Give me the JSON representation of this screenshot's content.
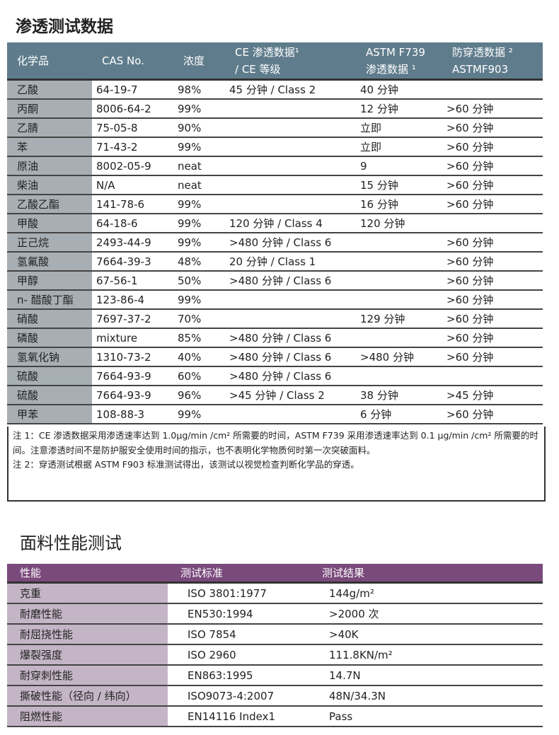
{
  "permeation": {
    "title": "渗透测试数据",
    "headers": [
      "化学品",
      "CAS No.",
      "浓度",
      "CE 渗透数据¹ / CE 等级",
      "ASTM F739 渗透数据 ¹",
      "防穿透数据 ² ASTMF903"
    ],
    "header_lines": [
      [
        "化学品"
      ],
      [
        "CAS No."
      ],
      [
        "浓度"
      ],
      [
        "CE 渗透数据¹",
        "/ CE 等级"
      ],
      [
        "ASTM F739",
        "渗透数据 ¹"
      ],
      [
        "防穿透数据 ²",
        "ASTMF903"
      ]
    ],
    "rows": [
      [
        "乙酸",
        "64-19-7",
        "98%",
        "45 分钟 / Class 2",
        "40 分钟",
        ""
      ],
      [
        "丙酮",
        "8006-64-2",
        "99%",
        "",
        "12 分钟",
        ">60 分钟"
      ],
      [
        "乙腈",
        "75-05-8",
        "90%",
        "",
        "立即",
        ">60 分钟"
      ],
      [
        "苯",
        "71-43-2",
        "99%",
        "",
        "立即",
        ">60 分钟"
      ],
      [
        "原油",
        "8002-05-9",
        "neat",
        "",
        "9",
        ">60 分钟"
      ],
      [
        "柴油",
        "N/A",
        "neat",
        "",
        "15 分钟",
        ">60 分钟"
      ],
      [
        "乙酸乙酯",
        "141-78-6",
        "99%",
        "",
        "16 分钟",
        ">60 分钟"
      ],
      [
        "甲酸",
        "64-18-6",
        "99%",
        "120 分钟 / Class 4",
        "120 分钟",
        ""
      ],
      [
        "正己烷",
        "2493-44-9",
        "99%",
        ">480 分钟 / Class 6",
        "",
        ">60 分钟"
      ],
      [
        "氢氟酸",
        "7664-39-3",
        "48%",
        "20 分钟 / Class 1",
        "",
        ">60 分钟"
      ],
      [
        "甲醇",
        "67-56-1",
        "50%",
        ">480 分钟 / Class 6",
        "",
        ">60 分钟"
      ],
      [
        "n- 醋酸丁酯",
        "123-86-4",
        "99%",
        "",
        "",
        ">60 分钟"
      ],
      [
        "硝酸",
        "7697-37-2",
        "70%",
        "",
        "129 分钟",
        ">60 分钟"
      ],
      [
        "磷酸",
        "mixture",
        "85%",
        ">480 分钟 / Class 6",
        "",
        ">60 分钟"
      ],
      [
        "氢氧化钠",
        "1310-73-2",
        "40%",
        ">480 分钟 / Class 6",
        ">480 分钟",
        ">60 分钟"
      ],
      [
        "硫酸",
        "7664-93-9",
        "60%",
        ">480 分钟 / Class 6",
        "",
        ""
      ],
      [
        "硫酸",
        "7664-93-9",
        "96%",
        ">45 分钟 / Class 2",
        "38 分钟",
        ">45 分钟"
      ],
      [
        "甲苯",
        "108-88-3",
        "99%",
        "",
        "6 分钟",
        ">60 分钟"
      ]
    ],
    "notes": [
      "注 1：CE 渗透数据采用渗透速率达到 1.0μg/min /cm² 所需要的时间，ASTM F739 采用渗透速率达到 0.1 μg/min /cm² 所需要的时间。注意渗透时间不是防护服安全使用时间的指示，也不表明化学物质何时第一次突破面料。",
      "注 2：穿透测试根据 ASTM F903 标准测试得出，该测试以视觉检查判断化学品的穿透。"
    ]
  },
  "fabric": {
    "title": "面料性能测试",
    "headers": [
      "性能",
      "测试标准",
      "测试结果"
    ],
    "rows": [
      [
        "克重",
        "ISO 3801:1977",
        "144g/m²"
      ],
      [
        "耐磨性能",
        "EN530:1994",
        ">2000 次"
      ],
      [
        "耐屈挠性能",
        "ISO 7854",
        ">40K"
      ],
      [
        "爆裂强度",
        "ISO 2960",
        "111.8KN/m²"
      ],
      [
        "耐穿刺性能",
        "EN863:1995",
        "14.7N"
      ],
      [
        "撕破性能（径向 / 纬向）",
        "ISO9073-4:2007",
        "48N/34.3N"
      ],
      [
        "阻燃性能",
        "EN14116 Index1",
        "Pass"
      ]
    ]
  },
  "colors": {
    "permeation_header": "#5f7c8c",
    "permeation_first_col": "#a7afb4",
    "fabric_header": "#7a4a7c",
    "fabric_first_col": "#c4b5c6"
  }
}
